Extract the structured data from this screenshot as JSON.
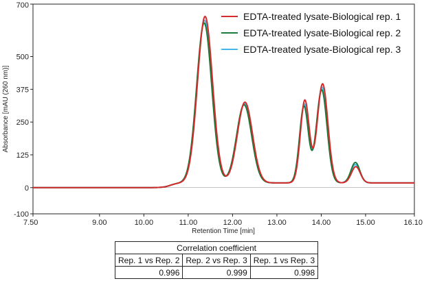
{
  "chart_data": {
    "type": "line",
    "xlabel": "Retention Time [min]",
    "ylabel": "Absorbance [mAU (260 nm)]",
    "xlim": [
      7.5,
      16.1
    ],
    "ylim": [
      -100,
      700
    ],
    "xticks": [
      "7.50",
      "9.00",
      "10.00",
      "11.00",
      "12.00",
      "13.00",
      "14.00",
      "15.00",
      "16.10"
    ],
    "yticks": [
      "-100",
      "0",
      "125",
      "250",
      "375",
      "500",
      "700"
    ],
    "grid": false,
    "legend_position": "top-right",
    "series": [
      {
        "name": "EDTA-treated lysate-Biological rep. 1",
        "color": "#d62a2a",
        "peaks": [
          {
            "rt": 11.38,
            "height": 635,
            "width": 0.17
          },
          {
            "rt": 12.28,
            "height": 308,
            "width": 0.17
          },
          {
            "rt": 13.63,
            "height": 315,
            "width": 0.1
          },
          {
            "rt": 14.03,
            "height": 378,
            "width": 0.12
          },
          {
            "rt": 14.78,
            "height": 62,
            "width": 0.1
          }
        ]
      },
      {
        "name": "EDTA-treated lysate-Biological rep. 2",
        "color": "#1a7a3a",
        "peaks": [
          {
            "rt": 11.36,
            "height": 610,
            "width": 0.17
          },
          {
            "rt": 12.26,
            "height": 298,
            "width": 0.17
          },
          {
            "rt": 13.61,
            "height": 292,
            "width": 0.1
          },
          {
            "rt": 14.01,
            "height": 355,
            "width": 0.12
          },
          {
            "rt": 14.77,
            "height": 78,
            "width": 0.1
          }
        ]
      },
      {
        "name": "EDTA-treated lysate-Biological rep. 3",
        "color": "#41b8e8",
        "peaks": [
          {
            "rt": 11.37,
            "height": 620,
            "width": 0.17
          },
          {
            "rt": 12.27,
            "height": 302,
            "width": 0.17
          },
          {
            "rt": 13.62,
            "height": 300,
            "width": 0.1
          },
          {
            "rt": 14.02,
            "height": 365,
            "width": 0.12
          },
          {
            "rt": 14.77,
            "height": 70,
            "width": 0.1
          }
        ]
      }
    ],
    "baseline_shoulder": {
      "rt": 10.6,
      "height": 18,
      "width": 0.25
    }
  },
  "correlation_table": {
    "title": "Correlation coefficient",
    "columns": [
      "Rep. 1 vs Rep. 2",
      "Rep. 2 vs Rep. 3",
      "Rep. 1 vs Rep. 3"
    ],
    "values": [
      "0.996",
      "0.999",
      "0.998"
    ]
  }
}
